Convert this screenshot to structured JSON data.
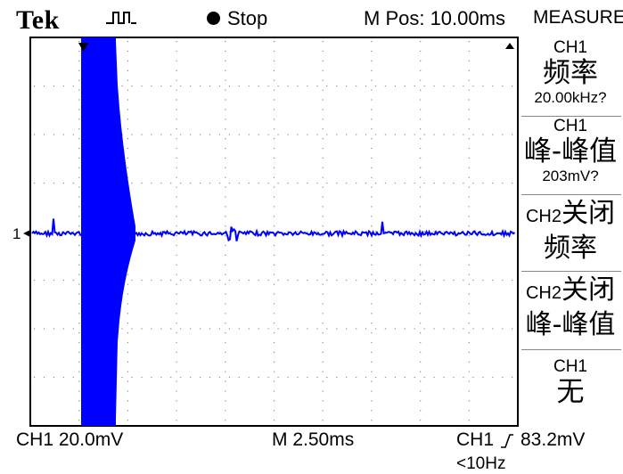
{
  "header": {
    "brand": "Tek",
    "trigger_icon": "trigger-pulse-icon",
    "run_state": "Stop",
    "m_pos": "M Pos: 10.00ms",
    "menu_title": "MEASURE"
  },
  "measure": [
    {
      "source": "CH1",
      "name": "频率",
      "value": "20.00kHz?"
    },
    {
      "source": "CH1",
      "name": "峰-峰值",
      "value": "203mV?"
    },
    {
      "source": "CH2",
      "state": "关闭",
      "name": "频率"
    },
    {
      "source": "CH2",
      "state": "关闭",
      "name": "峰-峰值"
    },
    {
      "source": "CH1",
      "name": "无"
    }
  ],
  "status": {
    "ch1_scale": "CH1  20.0mV",
    "timebase": "M 2.50ms",
    "trigger_source": "CH1",
    "trigger_level": "83.2mV",
    "trigger_freq": "<10Hz"
  },
  "colors": {
    "trace": "#0000ff",
    "grid": "#8c8c8c",
    "frame": "#000000"
  },
  "markers": {
    "ground_marker": "1"
  }
}
